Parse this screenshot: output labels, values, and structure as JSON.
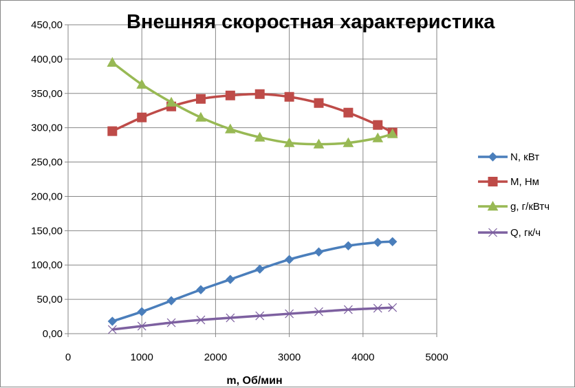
{
  "chart_data": {
    "type": "scatter",
    "title": "Внешняя скоростная характеристика",
    "xlabel": "m, Об/мин",
    "ylabel": "",
    "xlim": [
      0,
      5000
    ],
    "ylim": [
      0,
      450
    ],
    "xticks": [
      "0",
      "1000",
      "2000",
      "3000",
      "4000",
      "5000"
    ],
    "yticks": [
      "0,00",
      "50,00",
      "100,00",
      "150,00",
      "200,00",
      "250,00",
      "300,00",
      "350,00",
      "400,00",
      "450,00"
    ],
    "grid": true,
    "legend_position": "right",
    "series": [
      {
        "name": "N, кВт",
        "color": "#4A7EBB",
        "marker": "diamond",
        "x": [
          600,
          1000,
          1400,
          1800,
          2200,
          2600,
          3000,
          3400,
          3800,
          4200,
          4400
        ],
        "y": [
          18,
          32,
          48,
          64,
          79,
          94,
          108,
          119,
          128,
          133,
          134
        ]
      },
      {
        "name": "М, Нм",
        "color": "#BE4B48",
        "marker": "square",
        "x": [
          600,
          1000,
          1400,
          1800,
          2200,
          2600,
          3000,
          3400,
          3800,
          4200,
          4400
        ],
        "y": [
          295,
          315,
          331,
          342,
          347,
          349,
          345,
          336,
          322,
          304,
          293
        ]
      },
      {
        "name": "g, г/кВтч",
        "color": "#98B954",
        "marker": "triangle",
        "x": [
          600,
          1000,
          1400,
          1800,
          2200,
          2600,
          3000,
          3400,
          3800,
          4200,
          4400
        ],
        "y": [
          395,
          363,
          337,
          315,
          298,
          286,
          278,
          276,
          278,
          285,
          291
        ]
      },
      {
        "name": "Q, гк/ч",
        "color": "#7D60A0",
        "marker": "x",
        "x": [
          600,
          1000,
          1400,
          1800,
          2200,
          2600,
          3000,
          3400,
          3800,
          4200,
          4400
        ],
        "y": [
          6,
          11,
          16,
          20,
          23,
          26,
          29,
          32,
          35,
          37,
          38
        ]
      }
    ]
  }
}
